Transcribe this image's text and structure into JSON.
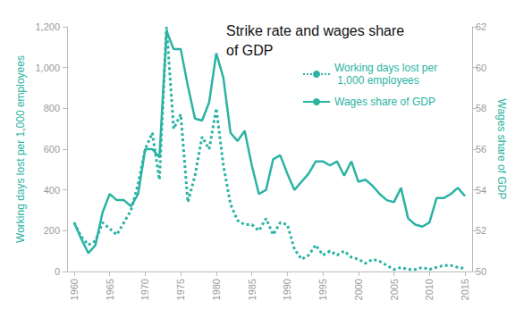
{
  "chart_data": {
    "type": "line",
    "title": "Strike rate and wages share of GDP",
    "x": [
      1960,
      1961,
      1962,
      1963,
      1964,
      1965,
      1966,
      1967,
      1968,
      1969,
      1970,
      1971,
      1972,
      1973,
      1974,
      1975,
      1976,
      1977,
      1978,
      1979,
      1980,
      1981,
      1982,
      1983,
      1984,
      1985,
      1986,
      1987,
      1988,
      1989,
      1990,
      1991,
      1992,
      1993,
      1994,
      1995,
      1996,
      1997,
      1998,
      1999,
      2000,
      2001,
      2002,
      2003,
      2004,
      2005,
      2006,
      2007,
      2008,
      2009,
      2010,
      2011,
      2012,
      2013,
      2014,
      2015
    ],
    "xlim": [
      1959,
      2016
    ],
    "xticks": [
      1960,
      1965,
      1970,
      1975,
      1980,
      1985,
      1990,
      1995,
      2000,
      2005,
      2010,
      2015
    ],
    "ylabel": "Working days lost per 1,000 employees",
    "ylim": [
      0,
      1200
    ],
    "yticks": [
      0,
      200,
      400,
      600,
      800,
      1000,
      1200
    ],
    "y2label": "Wages share of GDP",
    "y2lim": [
      50,
      62
    ],
    "y2ticks": [
      50,
      52,
      54,
      56,
      58,
      60,
      62
    ],
    "grid": false,
    "legend": "upper right",
    "series": [
      {
        "name": "Working days lost per 1,000 employees",
        "color": "#2ab3a3",
        "line_style": "dotted",
        "values": [
          240,
          170,
          130,
          150,
          240,
          210,
          180,
          240,
          300,
          430,
          600,
          680,
          450,
          1200,
          700,
          770,
          340,
          470,
          660,
          600,
          800,
          520,
          330,
          250,
          230,
          230,
          200,
          260,
          180,
          240,
          230,
          110,
          60,
          80,
          130,
          80,
          100,
          80,
          100,
          70,
          60,
          40,
          60,
          50,
          30,
          10,
          20,
          10,
          10,
          20,
          10,
          20,
          30,
          30,
          20,
          15
        ]
      },
      {
        "name": "Wages share of GDP",
        "color": "#2ab3a3",
        "line_style": "solid",
        "axis": "y2",
        "values": [
          52.4,
          51.6,
          50.9,
          51.3,
          52.9,
          53.8,
          53.5,
          53.5,
          53.2,
          53.8,
          56.0,
          56.0,
          55.6,
          61.8,
          60.9,
          60.9,
          59.1,
          57.5,
          57.4,
          58.3,
          60.7,
          59.5,
          56.8,
          56.4,
          56.9,
          55.2,
          53.8,
          54.0,
          55.5,
          55.7,
          54.8,
          54.0,
          54.4,
          54.8,
          55.4,
          55.4,
          55.2,
          55.4,
          54.7,
          55.4,
          54.4,
          54.5,
          54.2,
          53.8,
          53.5,
          53.4,
          54.1,
          52.6,
          52.3,
          52.2,
          52.4,
          53.6,
          53.6,
          53.8,
          54.1,
          53.7
        ]
      }
    ]
  }
}
